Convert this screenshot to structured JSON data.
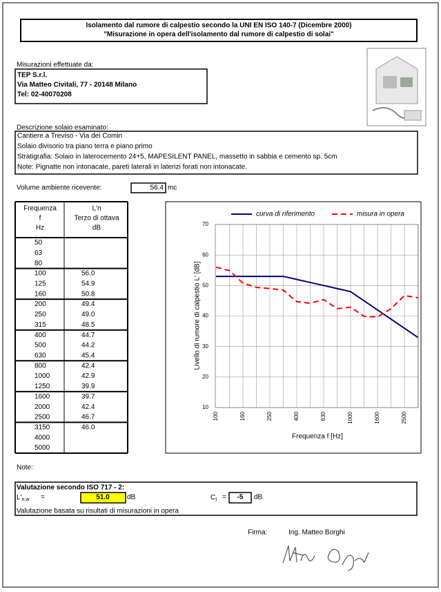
{
  "header": {
    "title_lines": [
      "Isolamento dal rumore di calpestio secondo la UNI EN ISO 140-7 (Dicembre 2000)",
      "\"Misurazione in opera dell'isolamento dal rumore di calpestio di solai\""
    ]
  },
  "company": {
    "label": "Misurazioni effettuate da:",
    "lines": [
      "TEP S.r.l.",
      "Via Matteo Civitali, 77 - 20148 Milano",
      "Tel: 02-40070208"
    ]
  },
  "description": {
    "label": "Descrizione solaio esaminato:",
    "lines": [
      "Cantiere a Treviso - Via dei Comin",
      "Solaio divisorio tra piano terra e piano primo",
      "Stratigrafia: Solaio in laterocemento 24+5, MAPESILENT PANEL, massetto in sabbia e cemento sp. 5cm",
      "Note: Pignatte non intonacate, pareti laterali in laterizi forati non intonacate."
    ]
  },
  "volume": {
    "label": "Volume ambiente ricevente:",
    "value": "56.4",
    "unit": "mc"
  },
  "table": {
    "headers": [
      [
        "Frequenza",
        "f",
        "Hz"
      ],
      [
        "L'n",
        "Terzo di ottava",
        "dB"
      ]
    ],
    "rows": [
      [
        "50",
        null
      ],
      [
        "63",
        null
      ],
      [
        "80",
        null
      ],
      [
        "100",
        "56.0"
      ],
      [
        "125",
        "54.9"
      ],
      [
        "160",
        "50.8"
      ],
      [
        "200",
        "49.4"
      ],
      [
        "250",
        "49.0"
      ],
      [
        "315",
        "48.5"
      ],
      [
        "400",
        "44.7"
      ],
      [
        "500",
        "44.2"
      ],
      [
        "630",
        "45.4"
      ],
      [
        "800",
        "42.4"
      ],
      [
        "1000",
        "42.9"
      ],
      [
        "1250",
        "39.9"
      ],
      [
        "1600",
        "39.7"
      ],
      [
        "2000",
        "42.4"
      ],
      [
        "2500",
        "46.7"
      ],
      [
        "3150",
        "46.0"
      ],
      [
        "4000",
        null
      ],
      [
        "5000",
        null
      ]
    ]
  },
  "chart_data": {
    "type": "line",
    "x_label": "Frequenza f [Hz]",
    "y_label": "Livello di rumore di calpestio L' [dB]",
    "categories": [
      "100",
      null,
      "160",
      null,
      "250",
      null,
      "400",
      null,
      "630",
      null,
      "1000",
      null,
      "1600",
      null,
      "2500",
      null
    ],
    "series": [
      {
        "name": "curva di riferimento",
        "color": "#000080",
        "dashed": false,
        "values": [
          53,
          53,
          53,
          53,
          53,
          53,
          52,
          51,
          50,
          49,
          48,
          45,
          42,
          39,
          36,
          33
        ]
      },
      {
        "name": "misura in opera",
        "color": "#ff0000",
        "dashed": true,
        "values": [
          56.0,
          54.9,
          50.8,
          49.4,
          49.0,
          48.5,
          44.7,
          44.2,
          45.4,
          42.4,
          42.9,
          39.9,
          39.7,
          42.4,
          46.7,
          46.0
        ]
      }
    ],
    "ylim": [
      10,
      70
    ],
    "yticks": [
      10,
      20,
      30,
      40,
      50,
      60,
      70
    ],
    "grid": true,
    "legend": "top"
  },
  "notes_label": "Note:",
  "evaluation": {
    "title": "Valutazione secondo ISO 717 - 2:",
    "lnw": {
      "symbol": "L'",
      "subscript": "n,w",
      "sign": "=",
      "value": "51.0",
      "unit": "dB"
    },
    "ci": {
      "symbol": "C",
      "subscript": "I",
      "sign": "=",
      "value": "-5",
      "unit": "dB"
    },
    "note": "Valutazione basata su risultati di misurazioni in opera"
  },
  "signature": {
    "label": "Firma:",
    "name": "Ing. Matteo Borghi"
  }
}
